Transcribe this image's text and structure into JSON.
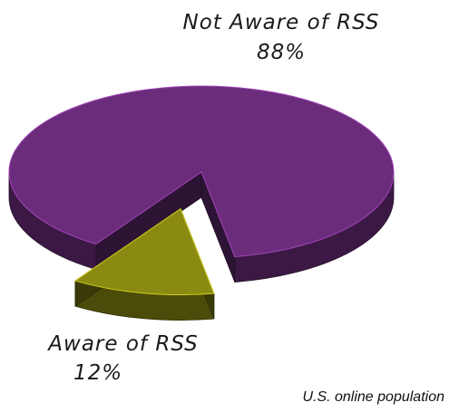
{
  "chart_data": {
    "type": "pie",
    "categories": [
      "Not Aware of RSS",
      "Aware of RSS"
    ],
    "values": [
      88,
      12
    ],
    "value_labels": [
      "88%",
      "12%"
    ],
    "colors": [
      "#6b2d7b",
      "#8a8a12"
    ],
    "annotation": "U.S. online population"
  }
}
